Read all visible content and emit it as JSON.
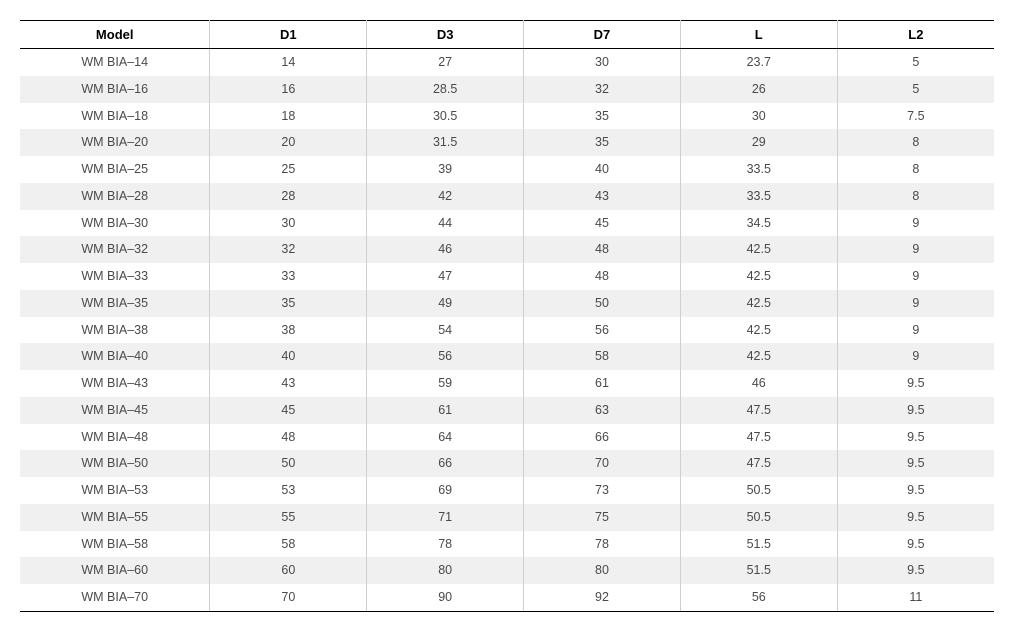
{
  "table": {
    "type": "table",
    "background_color": "#ffffff",
    "alt_row_color": "#f0f0f0",
    "border_color": "#cfcfcf",
    "rule_color": "#000000",
    "header_fontsize": 13,
    "body_fontsize": 12.5,
    "header_color": "#000000",
    "body_color": "#4a4a4a",
    "column_widths_pct": [
      19.5,
      16.1,
      16.1,
      16.1,
      16.1,
      16.1
    ],
    "columns": [
      "Model",
      "D1",
      "D3",
      "D7",
      "L",
      "L2"
    ],
    "rows": [
      [
        "WM BIA–14",
        "14",
        "27",
        "30",
        "23.7",
        "5"
      ],
      [
        "WM BIA–16",
        "16",
        "28.5",
        "32",
        "26",
        "5"
      ],
      [
        "WM BIA–18",
        "18",
        "30.5",
        "35",
        "30",
        "7.5"
      ],
      [
        "WM BIA–20",
        "20",
        "31.5",
        "35",
        "29",
        "8"
      ],
      [
        "WM BIA–25",
        "25",
        "39",
        "40",
        "33.5",
        "8"
      ],
      [
        "WM BIA–28",
        "28",
        "42",
        "43",
        "33.5",
        "8"
      ],
      [
        "WM BIA–30",
        "30",
        "44",
        "45",
        "34.5",
        "9"
      ],
      [
        "WM BIA–32",
        "32",
        "46",
        "48",
        "42.5",
        "9"
      ],
      [
        "WM BIA–33",
        "33",
        "47",
        "48",
        "42.5",
        "9"
      ],
      [
        "WM BIA–35",
        "35",
        "49",
        "50",
        "42.5",
        "9"
      ],
      [
        "WM BIA–38",
        "38",
        "54",
        "56",
        "42.5",
        "9"
      ],
      [
        "WM BIA–40",
        "40",
        "56",
        "58",
        "42.5",
        "9"
      ],
      [
        "WM BIA–43",
        "43",
        "59",
        "61",
        "46",
        "9.5"
      ],
      [
        "WM BIA–45",
        "45",
        "61",
        "63",
        "47.5",
        "9.5"
      ],
      [
        "WM BIA–48",
        "48",
        "64",
        "66",
        "47.5",
        "9.5"
      ],
      [
        "WM BIA–50",
        "50",
        "66",
        "70",
        "47.5",
        "9.5"
      ],
      [
        "WM BIA–53",
        "53",
        "69",
        "73",
        "50.5",
        "9.5"
      ],
      [
        "WM BIA–55",
        "55",
        "71",
        "75",
        "50.5",
        "9.5"
      ],
      [
        "WM BIA–58",
        "58",
        "78",
        "78",
        "51.5",
        "9.5"
      ],
      [
        "WM BIA–60",
        "60",
        "80",
        "80",
        "51.5",
        "9.5"
      ],
      [
        "WM BIA–70",
        "70",
        "90",
        "92",
        "56",
        "11"
      ]
    ]
  }
}
